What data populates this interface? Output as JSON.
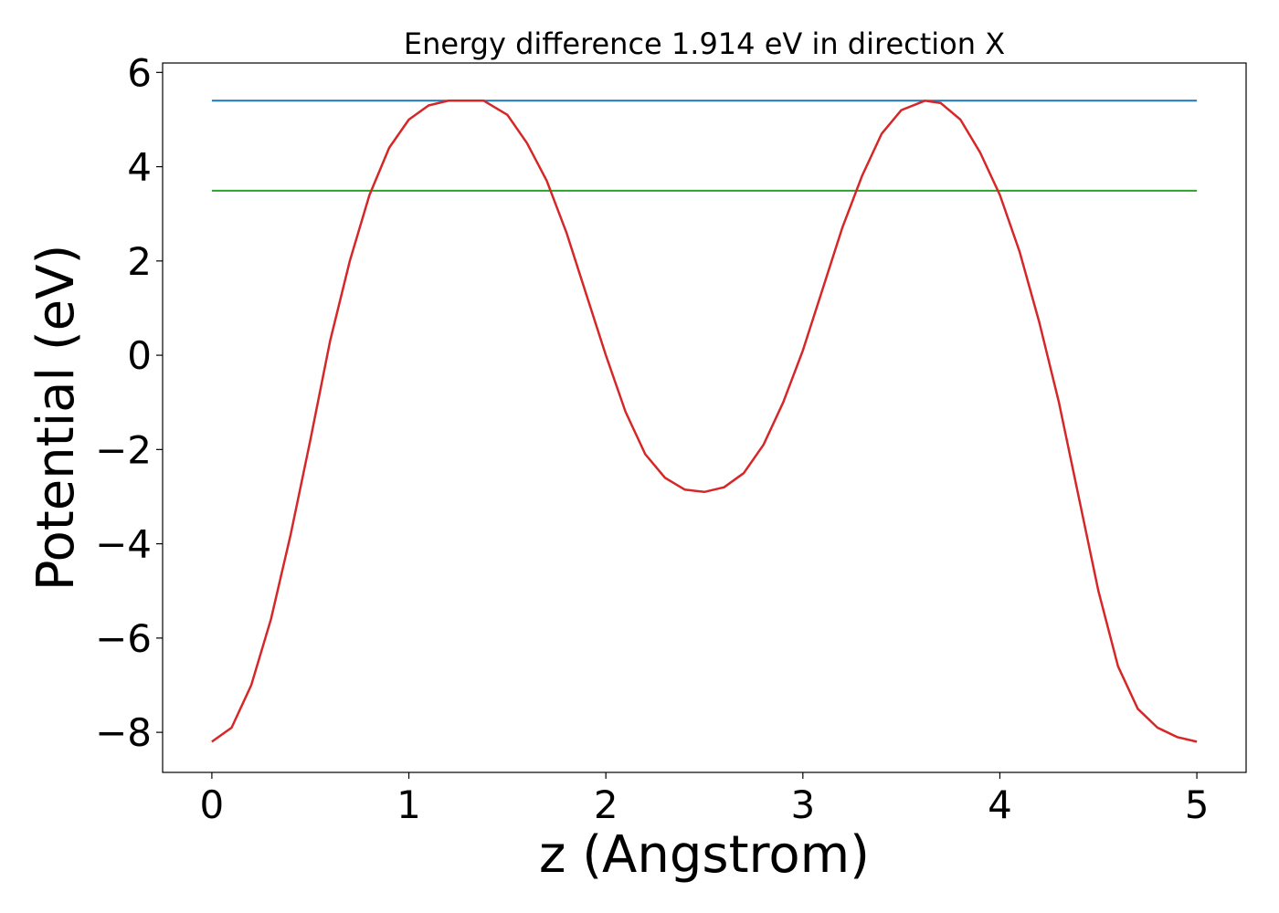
{
  "chart_data": {
    "type": "line",
    "title": "Energy difference 1.914 eV in direction X",
    "xlabel": "z (Angstrom)",
    "ylabel": "Potential (eV)",
    "xlim": [
      -0.25,
      5.25
    ],
    "ylim": [
      -8.85,
      6.2
    ],
    "xticks": [
      0,
      1,
      2,
      3,
      4,
      5
    ],
    "yticks": [
      -8,
      -6,
      -4,
      -2,
      0,
      2,
      4,
      6
    ],
    "xtick_labels": [
      "0",
      "1",
      "2",
      "3",
      "4",
      "5"
    ],
    "ytick_labels": [
      "−8",
      "−6",
      "−4",
      "−2",
      "0",
      "2",
      "4",
      "6"
    ],
    "grid": false,
    "legend": "none",
    "series": [
      {
        "color": "#1f77b4",
        "x": [
          0,
          5
        ],
        "y": [
          5.4,
          5.4
        ]
      },
      {
        "color": "#2ca02c",
        "x": [
          0,
          5
        ],
        "y": [
          3.49,
          3.49
        ]
      },
      {
        "color": "#d62728",
        "x": [
          0,
          0.1,
          0.2,
          0.3,
          0.4,
          0.5,
          0.6,
          0.7,
          0.8,
          0.9,
          1.0,
          1.1,
          1.2,
          1.3,
          1.38,
          1.5,
          1.6,
          1.7,
          1.8,
          1.9,
          2.0,
          2.1,
          2.2,
          2.3,
          2.4,
          2.5,
          2.6,
          2.7,
          2.8,
          2.9,
          3.0,
          3.1,
          3.2,
          3.3,
          3.4,
          3.5,
          3.62,
          3.7,
          3.8,
          3.9,
          4.0,
          4.1,
          4.2,
          4.3,
          4.4,
          4.5,
          4.6,
          4.7,
          4.8,
          4.9,
          5.0
        ],
        "y": [
          -8.2,
          -7.9,
          -7.0,
          -5.6,
          -3.8,
          -1.8,
          0.3,
          2.0,
          3.4,
          4.4,
          5.0,
          5.3,
          5.4,
          5.4,
          5.4,
          5.1,
          4.5,
          3.7,
          2.6,
          1.3,
          0.0,
          -1.2,
          -2.1,
          -2.6,
          -2.85,
          -2.9,
          -2.8,
          -2.5,
          -1.9,
          -1.0,
          0.1,
          1.4,
          2.7,
          3.8,
          4.7,
          5.2,
          5.4,
          5.35,
          5.0,
          4.3,
          3.4,
          2.2,
          0.7,
          -1.0,
          -3.0,
          -5.0,
          -6.6,
          -7.5,
          -7.9,
          -8.1,
          -8.2
        ]
      }
    ]
  }
}
